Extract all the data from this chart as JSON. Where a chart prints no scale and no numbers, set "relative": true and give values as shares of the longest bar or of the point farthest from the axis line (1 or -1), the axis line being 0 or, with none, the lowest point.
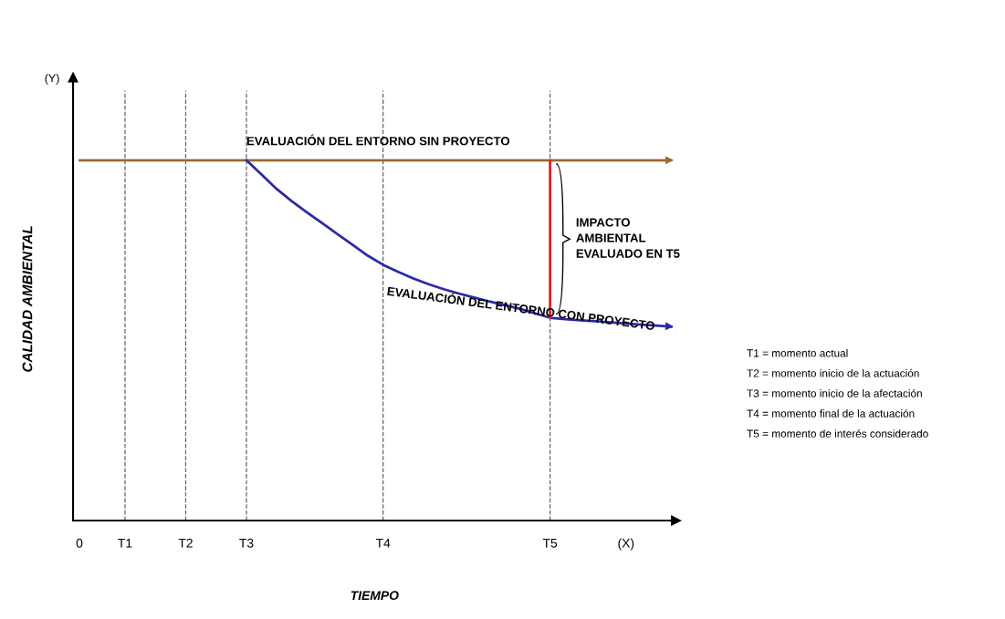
{
  "chart_data": {
    "type": "line",
    "relative": true,
    "xlabel": "TIEMPO",
    "ylabel": "CALIDAD AMBIENTAL",
    "categories": [
      "0",
      null,
      null,
      "T1",
      null,
      null,
      null,
      "T2",
      null,
      null,
      null,
      "T3",
      null,
      null,
      null,
      null,
      null,
      null,
      null,
      null,
      "T4",
      null,
      null,
      null,
      null,
      null,
      null,
      null,
      null,
      null,
      null,
      "T5",
      null,
      null,
      null,
      null,
      "(X)",
      null,
      null,
      null
    ],
    "tick_labels": "x",
    "line_style": "solid",
    "series": [
      {
        "name": "EVALUACIÓN DEL ENTORNO SIN PROYECTO",
        "color": "#9c6a30",
        "values": [
          1,
          1,
          1,
          1,
          1,
          1,
          1,
          1,
          1,
          1,
          1,
          1,
          1,
          1,
          1,
          1,
          1,
          1,
          1,
          1,
          1,
          1,
          1,
          1,
          1,
          1,
          1,
          1,
          1,
          1,
          1,
          1,
          1,
          1,
          1,
          1,
          1,
          1,
          1,
          1
        ]
      },
      {
        "name": "EVALUACIÓN DEL ENTORNO CON PROYECTO",
        "color": "#2b2ba6",
        "values": [
          null,
          null,
          null,
          null,
          null,
          null,
          null,
          null,
          null,
          null,
          null,
          1,
          0.96,
          0.92,
          0.886,
          0.855,
          0.825,
          0.795,
          0.765,
          0.735,
          0.71,
          0.69,
          0.672,
          0.656,
          0.642,
          0.63,
          0.619,
          0.608,
          0.598,
          0.588,
          0.575,
          0.563,
          0.559,
          0.556,
          0.553,
          0.55,
          0.547,
          0.544,
          0.541,
          0.538
        ]
      },
      {
        "color": "#e0202a",
        "x": [
          "T5",
          "T5"
        ],
        "values": [
          1,
          0.563
        ]
      }
    ],
    "ref_lines": [
      {
        "axis": "x",
        "value": "T1",
        "color": "#666666",
        "line_style": "dashed"
      },
      {
        "axis": "x",
        "value": "T2",
        "color": "#666666",
        "line_style": "dashed"
      },
      {
        "axis": "x",
        "value": "T3",
        "color": "#666666",
        "line_style": "dashed"
      },
      {
        "axis": "x",
        "value": "T4",
        "color": "#666666",
        "line_style": "dashed"
      },
      {
        "axis": "x",
        "value": "T5",
        "color": "#666666",
        "line_style": "dashed"
      }
    ],
    "annotations": [
      "(Y)",
      "IMPACTO\nAMBIENTAL\nEVALUADO EN T5",
      "T1 = momento actual",
      "T2 = momento inicio de la actuación",
      "T3 = momento inicio de la afectación",
      "T4 = momento final de la actuación",
      "T5 = momento de interés considerado"
    ]
  }
}
